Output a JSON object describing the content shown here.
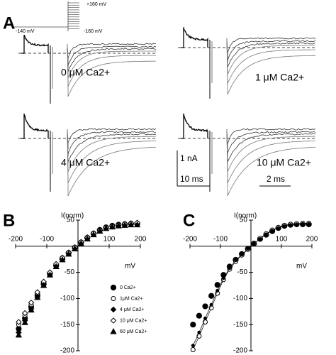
{
  "panel_a": {
    "label": "A",
    "protocol": {
      "top": "+160 mV",
      "bottom": "-160 mV",
      "hold": "-140 mV"
    },
    "conditions": [
      "0 μM Ca2+",
      "1 μM Ca2+",
      "4 μM Ca2+",
      "10 μM Ca2+"
    ],
    "scale": {
      "current": "1 nA",
      "time_slow": "10 ms",
      "time_fast": "2 ms"
    }
  },
  "chart_data": [
    {
      "type": "scatter",
      "panel_label": "B",
      "y_label": "I(norm)",
      "x_label": "mV",
      "xlim": [
        -200,
        200
      ],
      "ylim": [
        -200,
        50
      ],
      "xticks": [
        -200,
        -100,
        100,
        200
      ],
      "yticks": [
        50,
        -50,
        -100,
        -150,
        -200
      ],
      "x": [
        -190,
        -170,
        -150,
        -130,
        -110,
        -90,
        -70,
        -50,
        -30,
        -10,
        10,
        30,
        50,
        70,
        90,
        110,
        130,
        150,
        170,
        190
      ],
      "series": [
        {
          "name": "0 Ca2+",
          "color": "#000000",
          "marker": "filled-circle",
          "values": [
            -158,
            -138,
            -116,
            -94,
            -72,
            -53,
            -37,
            -24,
            -13,
            -3,
            7,
            16,
            24,
            31,
            36,
            39,
            41,
            42,
            43,
            43
          ]
        },
        {
          "name": "1μM Ca2+",
          "color": "#000000",
          "marker": "open-circle",
          "values": [
            -150,
            -132,
            -112,
            -90,
            -70,
            -51,
            -35,
            -22,
            -12,
            -2,
            8,
            17,
            25,
            32,
            37,
            40,
            42,
            43,
            44,
            44
          ]
        },
        {
          "name": "4 μM Ca2+",
          "color": "#000000",
          "marker": "filled-diamond",
          "values": [
            -165,
            -142,
            -120,
            -97,
            -74,
            -54,
            -38,
            -25,
            -14,
            -4,
            6,
            15,
            23,
            30,
            35,
            38,
            40,
            41,
            42,
            42
          ]
        },
        {
          "name": "10 μM Ca2+",
          "color": "#000000",
          "marker": "open-diamond",
          "values": [
            -145,
            -128,
            -108,
            -88,
            -68,
            -50,
            -34,
            -22,
            -12,
            -2,
            8,
            17,
            25,
            31,
            36,
            39,
            41,
            43,
            44,
            45
          ]
        },
        {
          "name": "60 μM Ca2+",
          "color": "#000000",
          "marker": "filled-triangle",
          "values": [
            -170,
            -146,
            -122,
            -98,
            -75,
            -55,
            -39,
            -26,
            -15,
            -5,
            5,
            14,
            22,
            29,
            34,
            37,
            39,
            40,
            41,
            41
          ]
        }
      ]
    },
    {
      "type": "scatter",
      "panel_label": "C",
      "y_label": "I(norm)",
      "x_label": "mV",
      "xlim": [
        -200,
        200
      ],
      "ylim": [
        -200,
        50
      ],
      "xticks": [
        -200,
        -100,
        100,
        200
      ],
      "yticks": [
        50,
        -50,
        -100,
        -150,
        -200
      ],
      "x": [
        -190,
        -170,
        -150,
        -130,
        -110,
        -90,
        -70,
        -50,
        -30,
        -10,
        10,
        30,
        50,
        70,
        90,
        110,
        130,
        150,
        170,
        190
      ],
      "series": [
        {
          "color": "#000000",
          "marker": "filled-circle",
          "values": [
            -150,
            -133,
            -115,
            -95,
            -74,
            -55,
            -39,
            -26,
            -15,
            -5,
            5,
            14,
            22,
            29,
            35,
            39,
            41,
            42,
            42,
            42
          ]
        },
        {
          "color": "#000000",
          "marker": "open-circle",
          "line": true,
          "values": [
            -198,
            -172,
            -145,
            -118,
            -90,
            -64,
            -44,
            -29,
            -17,
            -6,
            5,
            15,
            24,
            31,
            36,
            40,
            42,
            43,
            44,
            44
          ]
        },
        {
          "color": "#000000",
          "marker": "small-filled-circle",
          "line": true,
          "values": [
            -190,
            -165,
            -138,
            -112,
            -85,
            -61,
            -42,
            -27,
            -16,
            -5,
            5,
            14,
            23,
            30,
            35,
            39,
            41,
            42,
            43,
            43
          ]
        }
      ]
    }
  ]
}
